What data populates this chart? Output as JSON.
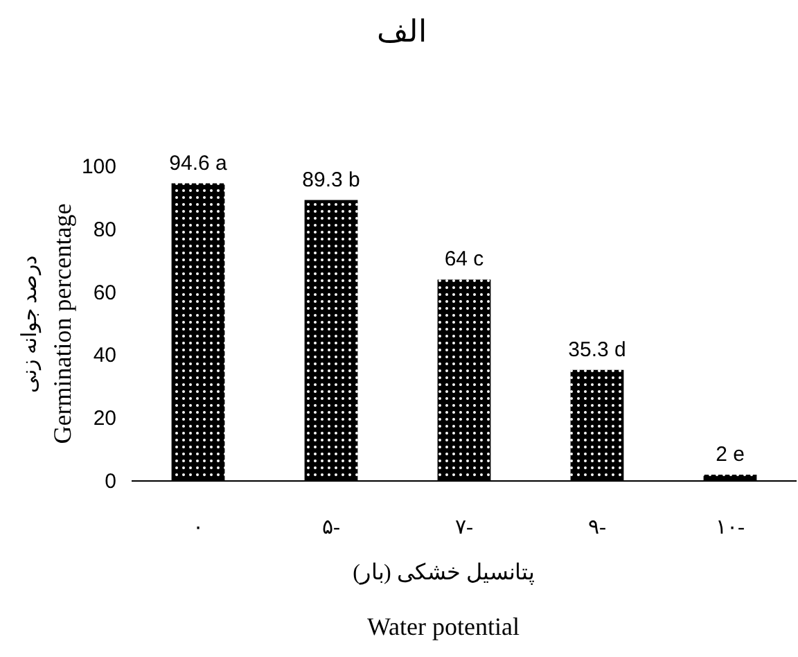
{
  "chart_data": {
    "type": "bar",
    "title": "الف",
    "ylabel": "درصد جوانه زنی\nGermination percentage",
    "xlabel": "پتانسیل خشکی (بار)\nWater potential",
    "categories": [
      "۰",
      "۵-",
      "۷-",
      "۹-",
      "۱۰-"
    ],
    "values": [
      94.6,
      89.3,
      64,
      35.3,
      2
    ],
    "value_labels": [
      "94.6 a",
      "89.3 b",
      "64 c",
      "35.3 d",
      "2 e"
    ],
    "color": "#000000",
    "ylim": [
      0,
      100
    ],
    "yticks": [
      0,
      20,
      40,
      60,
      80,
      100
    ],
    "grid": false
  }
}
